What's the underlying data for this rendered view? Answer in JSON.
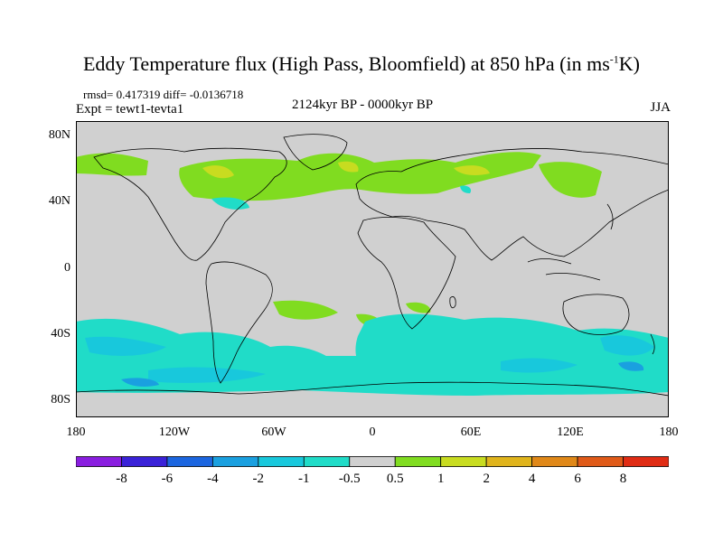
{
  "title": {
    "main": "Eddy Temperature flux (High Pass, Bloomfield) at 850 hPa (in ms",
    "sup": "-1",
    "unit_end": "K)"
  },
  "stats": "rmsd= 0.417319 diff= -0.0136718",
  "expt": "Expt = tewt1-tevta1",
  "period": "2124kyr BP - 0000kyr BP",
  "season": "JJA",
  "lat_labels": [
    "80N",
    "40N",
    "0",
    "40S",
    "80S"
  ],
  "lon_labels": [
    "180",
    "120W",
    "60W",
    "0",
    "60E",
    "120E",
    "180"
  ],
  "colorbar": {
    "labels": [
      "-8",
      "-6",
      "-4",
      "-2",
      "-1",
      "-0.5",
      "0.5",
      "1",
      "2",
      "4",
      "6",
      "8"
    ],
    "colors": [
      "#8a1ee0",
      "#3a22d8",
      "#1c66e0",
      "#1aa0e0",
      "#18c8dc",
      "#20dcc8",
      "#d0d0d0",
      "#80dc20",
      "#c8dc20",
      "#e0b41c",
      "#e08818",
      "#e05a18",
      "#e02c14"
    ]
  },
  "colors": {
    "ocean_land_bg": "#d0d0d0",
    "coast": "#000000"
  }
}
